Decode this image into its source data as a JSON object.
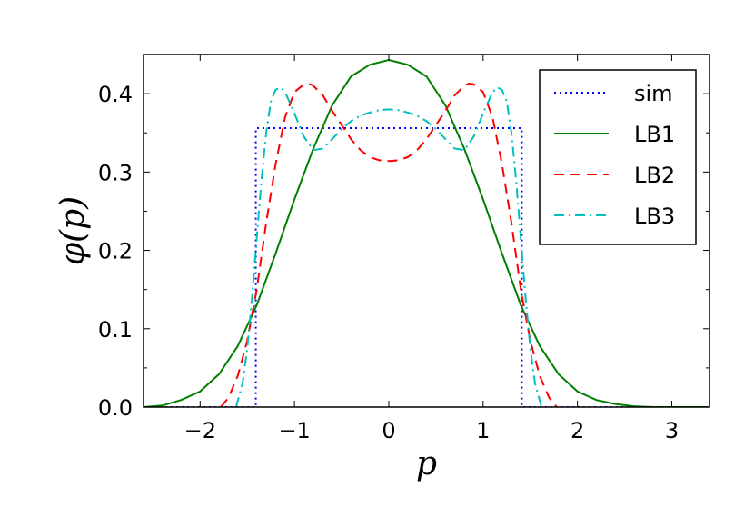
{
  "chart_data": {
    "type": "line",
    "xlabel": "p",
    "ylabel": "φ(p)",
    "xlim": [
      -2.6,
      3.4
    ],
    "ylim": [
      0.0,
      0.45
    ],
    "xticks": [
      -2,
      -1,
      0,
      1,
      2,
      3
    ],
    "xtick_labels": [
      "−2",
      "−1",
      "0",
      "1",
      "2",
      "3"
    ],
    "yticks": [
      0.0,
      0.1,
      0.2,
      0.3,
      0.4
    ],
    "ytick_labels": [
      "0.0",
      "0.1",
      "0.2",
      "0.3",
      "0.4"
    ],
    "grid": false,
    "legend": {
      "position": "top-right"
    },
    "series": [
      {
        "name": "sim",
        "color": "#0000ff",
        "style": "dotted",
        "x": [
          -2.6,
          -1.41,
          -1.41,
          1.41,
          1.41,
          3.4
        ],
        "y": [
          0.0,
          0.0,
          0.356,
          0.356,
          0.0,
          0.0
        ]
      },
      {
        "name": "LB1",
        "color": "#008000",
        "style": "solid",
        "x": [
          -2.6,
          -2.4,
          -2.2,
          -2.0,
          -1.8,
          -1.6,
          -1.4,
          -1.2,
          -1.0,
          -0.8,
          -0.6,
          -0.4,
          -0.2,
          0.0,
          0.2,
          0.4,
          0.6,
          0.8,
          1.0,
          1.2,
          1.4,
          1.6,
          1.8,
          2.0,
          2.2,
          2.4,
          2.6,
          2.8,
          3.0,
          3.2,
          3.4
        ],
        "y": [
          0.0,
          0.002,
          0.009,
          0.02,
          0.042,
          0.078,
          0.13,
          0.196,
          0.265,
          0.33,
          0.385,
          0.422,
          0.437,
          0.443,
          0.437,
          0.422,
          0.385,
          0.33,
          0.265,
          0.196,
          0.13,
          0.078,
          0.042,
          0.02,
          0.009,
          0.004,
          0.001,
          0.0,
          0.0,
          0.0,
          0.0
        ]
      },
      {
        "name": "LB2",
        "color": "#ff0000",
        "style": "dashed",
        "x": [
          -1.78,
          -1.7,
          -1.6,
          -1.5,
          -1.4,
          -1.3,
          -1.2,
          -1.1,
          -1.0,
          -0.9,
          -0.85,
          -0.8,
          -0.7,
          -0.6,
          -0.5,
          -0.4,
          -0.3,
          -0.2,
          -0.1,
          0.0,
          0.1,
          0.2,
          0.3,
          0.4,
          0.5,
          0.6,
          0.7,
          0.8,
          0.85,
          0.9,
          1.0,
          1.1,
          1.2,
          1.3,
          1.4,
          1.5,
          1.6,
          1.7,
          1.78
        ],
        "y": [
          0.0,
          0.012,
          0.04,
          0.085,
          0.15,
          0.235,
          0.31,
          0.37,
          0.402,
          0.412,
          0.413,
          0.41,
          0.398,
          0.378,
          0.36,
          0.342,
          0.328,
          0.319,
          0.315,
          0.314,
          0.315,
          0.319,
          0.328,
          0.342,
          0.36,
          0.378,
          0.398,
          0.41,
          0.413,
          0.412,
          0.402,
          0.37,
          0.31,
          0.235,
          0.15,
          0.085,
          0.04,
          0.012,
          0.0
        ]
      },
      {
        "name": "LB3",
        "color": "#00bfbf",
        "style": "dashdot",
        "x": [
          -1.62,
          -1.55,
          -1.5,
          -1.45,
          -1.4,
          -1.35,
          -1.3,
          -1.25,
          -1.2,
          -1.15,
          -1.1,
          -1.0,
          -0.9,
          -0.8,
          -0.7,
          -0.6,
          -0.5,
          -0.4,
          -0.3,
          -0.2,
          -0.1,
          0.0,
          0.1,
          0.2,
          0.3,
          0.4,
          0.5,
          0.6,
          0.7,
          0.8,
          0.9,
          1.0,
          1.1,
          1.15,
          1.2,
          1.25,
          1.3,
          1.35,
          1.4,
          1.45,
          1.5,
          1.55,
          1.62
        ],
        "y": [
          0.0,
          0.03,
          0.075,
          0.14,
          0.215,
          0.29,
          0.35,
          0.39,
          0.405,
          0.408,
          0.402,
          0.375,
          0.345,
          0.328,
          0.33,
          0.342,
          0.355,
          0.365,
          0.372,
          0.376,
          0.379,
          0.38,
          0.379,
          0.376,
          0.372,
          0.365,
          0.355,
          0.342,
          0.33,
          0.328,
          0.345,
          0.375,
          0.402,
          0.408,
          0.405,
          0.39,
          0.35,
          0.29,
          0.215,
          0.14,
          0.075,
          0.03,
          0.0
        ]
      }
    ]
  }
}
